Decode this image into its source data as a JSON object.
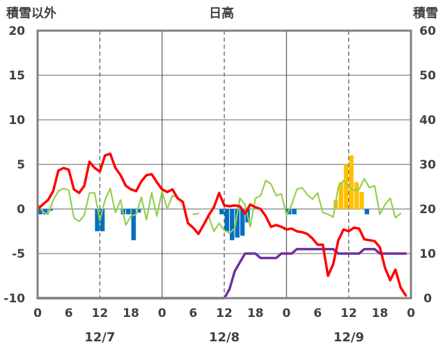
{
  "chart_data": {
    "type": "line",
    "title": "日高",
    "y_left_label": "積雪以外",
    "y_right_label": "積雪",
    "y_left_range": [
      -10,
      20
    ],
    "y_right_range": [
      0,
      60
    ],
    "y_left_ticks": [
      "20",
      "15",
      "10",
      "5",
      "0",
      "-5",
      "-10"
    ],
    "y_right_ticks": [
      "60",
      "50",
      "40",
      "30",
      "20",
      "10",
      "0"
    ],
    "x_range_hours": [
      0,
      72
    ],
    "x_ticks": [
      "0",
      "6",
      "12",
      "18",
      "0",
      "6",
      "12",
      "18",
      "0",
      "6",
      "12",
      "18",
      "0"
    ],
    "date_labels": [
      "12/7",
      "12/8",
      "12/9"
    ],
    "colors": {
      "temperature": "#ff0000",
      "wind": "#92d050",
      "precipitation_rain": "#0070c0",
      "precipitation_snow": "#ffc000",
      "snow_depth": "#7030a0",
      "frame": "#808080"
    },
    "series": [
      {
        "key": "temperature",
        "axis": "left",
        "style": "thick-line",
        "x": [
          0,
          1,
          2,
          3,
          4,
          5,
          6,
          7,
          8,
          9,
          10,
          11,
          12,
          13,
          14,
          15,
          16,
          17,
          18,
          19,
          20,
          21,
          22,
          23,
          24,
          25,
          26,
          27,
          28,
          29,
          30,
          31,
          32,
          33,
          34,
          35,
          36,
          37,
          38,
          39,
          40,
          41,
          42,
          43,
          44,
          45,
          46,
          47,
          48,
          49,
          50,
          51,
          52,
          53,
          54,
          55,
          56,
          57,
          58,
          59,
          60,
          61,
          62,
          63,
          64,
          65,
          66,
          67,
          68,
          69,
          70,
          71
        ],
        "values": [
          0,
          0.5,
          1,
          2,
          4.3,
          4.6,
          4.4,
          2.2,
          1.8,
          2.6,
          5.3,
          4.6,
          4.2,
          6,
          6.2,
          4.6,
          3.8,
          2.6,
          2.2,
          2,
          3.1,
          3.8,
          3.9,
          3,
          2.2,
          1.9,
          2.2,
          1.2,
          0.8,
          -1.6,
          -2.1,
          -2.8,
          -1.8,
          -0.7,
          0.2,
          1.8,
          0.4,
          0.3,
          0.4,
          0.3,
          -0.5,
          0.5,
          0.2,
          0,
          -0.8,
          -2,
          -1.8,
          -2,
          -2.3,
          -2.2,
          -2.5,
          -2.6,
          -2.8,
          -3.3,
          -4,
          -4,
          -7.5,
          -6.2,
          -3.5,
          -2.3,
          -2.5,
          -2.1,
          -2.2,
          -3.4,
          -3.5,
          -3.6,
          -4.3,
          -6.6,
          -8,
          -6.8,
          -8.8,
          -9.7
        ]
      },
      {
        "key": "wind",
        "axis": "left",
        "style": "thin-line",
        "x": [
          0,
          1,
          2,
          3,
          4,
          5,
          6,
          7,
          8,
          9,
          10,
          11,
          12,
          13,
          14,
          15,
          16,
          17,
          18,
          19,
          20,
          21,
          22,
          23,
          24,
          25,
          26,
          27,
          28,
          29,
          30,
          31,
          32,
          33,
          34,
          35,
          36,
          37,
          38,
          39,
          40,
          41,
          42,
          43,
          44,
          45,
          46,
          47,
          48,
          49,
          50,
          51,
          52,
          53,
          54,
          55,
          56,
          57,
          58,
          59,
          60,
          61,
          62,
          63,
          64,
          65,
          66,
          67,
          68,
          69,
          70,
          71
        ],
        "values": [
          0.6,
          -0.3,
          -0.6,
          1,
          2,
          2.3,
          2.1,
          -1,
          -1.4,
          -0.7,
          1.8,
          1.8,
          -1.3,
          1,
          2.3,
          -0.4,
          1,
          -1.8,
          -0.8,
          -0.6,
          1.3,
          -1.2,
          1.8,
          -0.8,
          2,
          0,
          1.5,
          1.3,
          null,
          null,
          -0.6,
          -0.5,
          null,
          -0.8,
          -2.5,
          -1.6,
          -2.4,
          -2.7,
          -2.2,
          1.2,
          0.5,
          -2,
          1.2,
          1.5,
          3.2,
          2.8,
          1.5,
          1.7,
          -0.7,
          0.5,
          2.2,
          2.4,
          1.6,
          1.1,
          1.8,
          -0.4,
          -0.6,
          -0.9,
          2.5,
          3.2,
          2.5,
          2.1,
          2.2,
          3.4,
          2.4,
          2.6,
          -0.6,
          0.5,
          1.2,
          -1,
          -0.5,
          null
        ]
      },
      {
        "key": "precipitation_rain",
        "axis": "left",
        "style": "bar-down",
        "x": [
          0,
          1,
          2,
          11,
          12,
          16,
          17,
          18,
          19,
          35,
          36,
          37,
          38,
          39,
          40,
          48,
          49,
          63
        ],
        "values": [
          0.6,
          0.6,
          0.2,
          2.5,
          2.5,
          0.6,
          0.6,
          3.5,
          0.4,
          0.6,
          2.5,
          3.5,
          3.2,
          3,
          1.5,
          0.6,
          0.6,
          0.6
        ]
      },
      {
        "key": "precipitation_snow",
        "axis": "left",
        "style": "bar-up",
        "x": [
          57,
          58,
          59,
          60,
          61,
          62
        ],
        "values": [
          1,
          3,
          5,
          6,
          3,
          1.9
        ]
      },
      {
        "key": "snow_depth",
        "axis": "right",
        "style": "thick-line",
        "x": [
          0,
          36,
          37,
          38,
          39,
          40,
          41,
          42,
          43,
          44,
          45,
          46,
          47,
          48,
          49,
          50,
          51,
          52,
          53,
          54,
          55,
          56,
          57,
          58,
          59,
          60,
          61,
          62,
          63,
          64,
          65,
          66,
          67,
          68,
          69,
          70,
          71
        ],
        "values": [
          0,
          0,
          2,
          6,
          8,
          10,
          10,
          10,
          9,
          9,
          9,
          9,
          10,
          10,
          10,
          11,
          11,
          11,
          11,
          11,
          11,
          11,
          11,
          10,
          10,
          10,
          10,
          10,
          11,
          11,
          11,
          10,
          10,
          10,
          10,
          10,
          10
        ]
      }
    ]
  }
}
